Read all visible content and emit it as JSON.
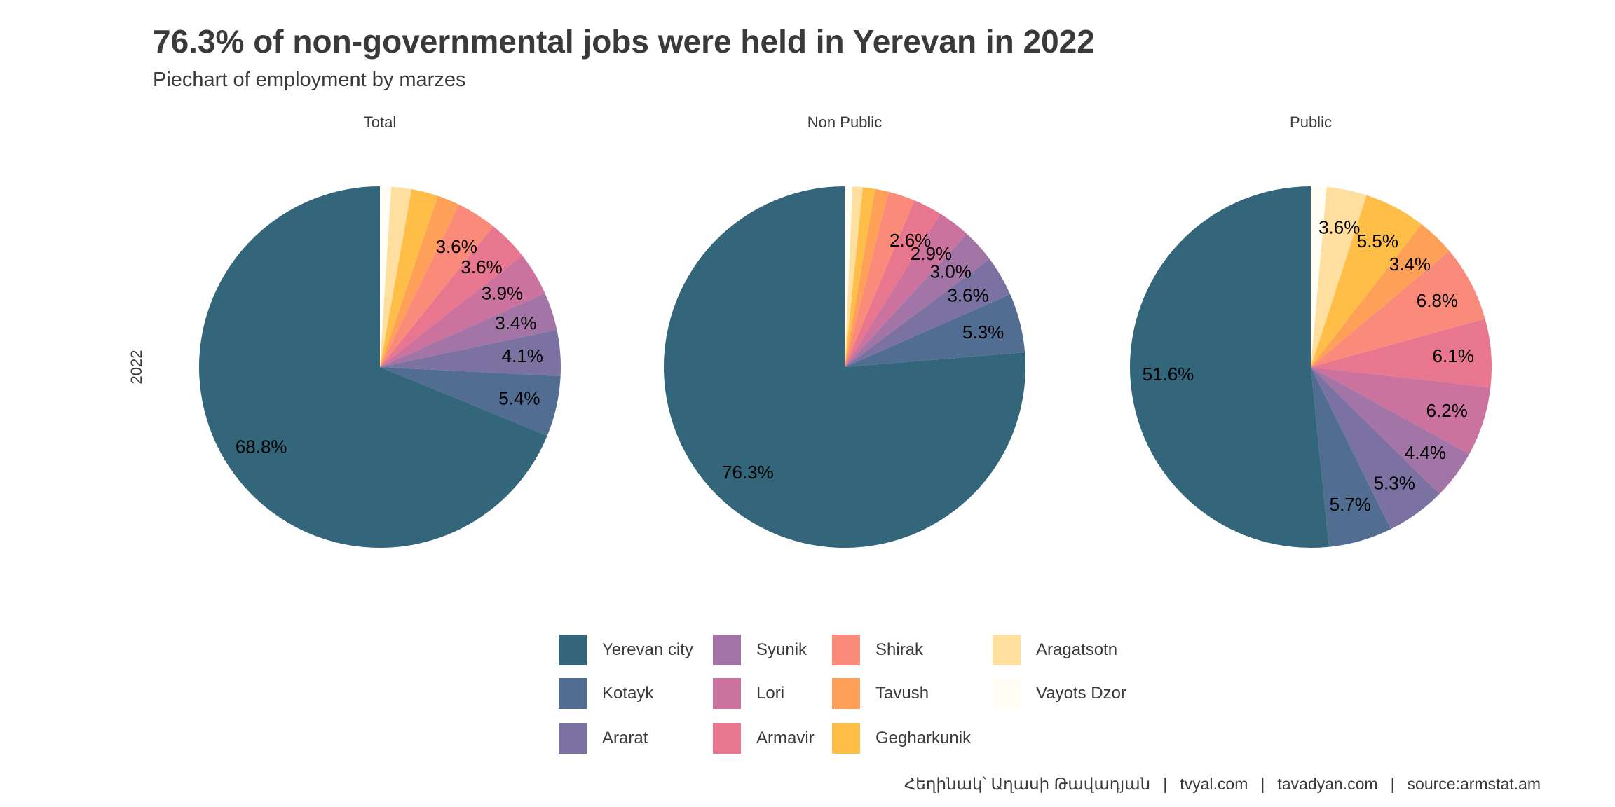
{
  "chart_data": {
    "type": "pie",
    "title": "76.3% of non-governmental jobs were held in Yerevan in 2022",
    "subtitle": "Piechart of employment by marzes",
    "row_label": "2022",
    "categories": [
      "Yerevan city",
      "Kotayk",
      "Ararat",
      "Syunik",
      "Lori",
      "Armavir",
      "Shirak",
      "Tavush",
      "Gegharkunik",
      "Aragatsotn",
      "Vayots Dzor"
    ],
    "colors": [
      "#33667a",
      "#516d91",
      "#7b72a1",
      "#a375a6",
      "#cb729e",
      "#e8768e",
      "#fa8a7a",
      "#fea058",
      "#ffbe48",
      "#fedf9f",
      "#fffdf4"
    ],
    "legend_position": "bottom",
    "facets": [
      {
        "name": "Total",
        "values": [
          68.8,
          5.4,
          4.1,
          3.4,
          3.9,
          3.6,
          3.6,
          2.0,
          2.4,
          1.8,
          1.0
        ],
        "labels": [
          "68.8%",
          "5.4%",
          "4.1%",
          "3.4%",
          "3.9%",
          "3.6%",
          "3.6%",
          "",
          "",
          "",
          ""
        ]
      },
      {
        "name": "Non Public",
        "values": [
          76.3,
          5.3,
          3.6,
          3.0,
          2.9,
          2.6,
          2.4,
          1.2,
          1.1,
          0.9,
          0.7
        ],
        "labels": [
          "76.3%",
          "5.3%",
          "3.6%",
          "3.0%",
          "2.9%",
          "2.6%",
          "",
          "",
          "",
          "",
          ""
        ]
      },
      {
        "name": "Public",
        "values": [
          51.6,
          5.7,
          5.3,
          4.4,
          6.2,
          6.1,
          6.8,
          3.4,
          5.5,
          3.6,
          1.4
        ],
        "labels": [
          "51.6%",
          "5.7%",
          "5.3%",
          "4.4%",
          "6.2%",
          "6.1%",
          "6.8%",
          "3.4%",
          "5.5%",
          "3.6%",
          ""
        ]
      }
    ]
  },
  "footer": {
    "author": "Հեղինակ՝ Աղասի Թավադյան",
    "site1": "tvyal.com",
    "site2": "tavadyan.com",
    "source": "source:armstat.am",
    "separator": "|"
  }
}
